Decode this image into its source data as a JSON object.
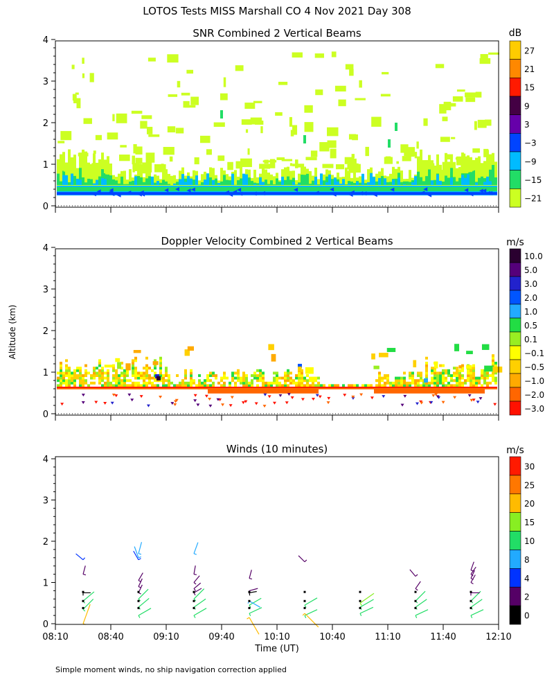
{
  "page_title": "LOTOS Tests MISS Marshall CO    4 Nov 2021 Day 308",
  "footnote": "Simple moment winds, no ship navigation correction applied",
  "shared_axes": {
    "ylabel": "Altitude (km)",
    "xlabel": "Time (UT)",
    "x_tick_labels": [
      "08:10",
      "08:40",
      "09:10",
      "09:40",
      "10:10",
      "10:40",
      "11:10",
      "11:40",
      "12:10"
    ],
    "x_range_minutes": [
      490,
      730
    ],
    "y_tick_labels": [
      "0",
      "1",
      "2",
      "3",
      "4"
    ],
    "ylim_km": [
      0,
      4
    ]
  },
  "chart_data": [
    {
      "type": "heatmap",
      "title": "SNR Combined 2 Vertical Beams",
      "colorbar_unit": "dB",
      "colorbar_levels": [
        "27",
        "21",
        "15",
        "9",
        "3",
        "−3",
        "−9",
        "−15",
        "−21"
      ],
      "colorbar_colors": [
        "#ffcc00",
        "#ff8800",
        "#ff1a00",
        "#440044",
        "#6600aa",
        "#0044ff",
        "#00bbff",
        "#22dd66",
        "#ccff22"
      ],
      "xlim_minutes": [
        490,
        730
      ],
      "ylim_km": [
        0,
        4
      ],
      "features": [
        {
          "layer": "strong return band",
          "altitude_km": [
            0.25,
            0.45
          ],
          "class": "−9 to 3 dB"
        },
        {
          "layer": "boundary layer echoes",
          "altitude_km": [
            0.45,
            1.2
          ],
          "class": "−21 to −9 dB"
        },
        {
          "layer": "scattered weak echoes",
          "altitude_km": [
            1.2,
            4.0
          ],
          "class": "−21 dB"
        }
      ]
    },
    {
      "type": "heatmap",
      "title": "Doppler Velocity Combined 2 Vertical Beams",
      "colorbar_unit": "m/s",
      "colorbar_levels": [
        "10.0",
        "5.0",
        "3.0",
        "2.0",
        "1.0",
        "0.5",
        "0.1",
        "−0.1",
        "−0.5",
        "−1.0",
        "−2.0",
        "−3.0"
      ],
      "colorbar_colors": [
        "#2a0030",
        "#55007a",
        "#2222cc",
        "#0055ff",
        "#22aaff",
        "#22dd44",
        "#99ee22",
        "#ffff00",
        "#ffd000",
        "#ffaa00",
        "#ff6600",
        "#ff1100"
      ],
      "xlim_minutes": [
        490,
        730
      ],
      "ylim_km": [
        0,
        4
      ],
      "features": [
        {
          "layer": "downward velocities line",
          "altitude_km": [
            0.55,
            0.65
          ],
          "class": "−3.0 to −2.0 m/s"
        },
        {
          "layer": "mixed layer",
          "altitude_km": [
            0.65,
            1.3
          ],
          "class": "−0.5 to 0.5 m/s"
        }
      ]
    },
    {
      "type": "line",
      "title": "Winds (10 minutes)",
      "colorbar_unit": "m/s",
      "colorbar_levels": [
        "30",
        "25",
        "20",
        "15",
        "10",
        "8",
        "4",
        "2",
        "0"
      ],
      "colorbar_colors": [
        "#ff1a00",
        "#ff7700",
        "#ffbb00",
        "#88ee22",
        "#22dd66",
        "#22aaff",
        "#0033ff",
        "#550066",
        "#000000"
      ],
      "xlim_minutes": [
        490,
        730
      ],
      "ylim_km": [
        0,
        4
      ],
      "profiles": [
        {
          "time": 505,
          "barbs": [
            {
              "alt": 0.0,
              "dir": 200,
              "spd": 22
            },
            {
              "alt": 0.35,
              "dir": 225,
              "spd": 12
            },
            {
              "alt": 0.55,
              "dir": 230,
              "spd": 12
            },
            {
              "alt": 0.75,
              "dir": 270,
              "spd": 1
            },
            {
              "alt": 1.2,
              "dir": 195,
              "spd": 3
            },
            {
              "alt": 1.55,
              "dir": 130,
              "spd": 4
            }
          ]
        },
        {
          "time": 535,
          "barbs": [
            {
              "alt": 0.2,
              "dir": 240,
              "spd": 12
            },
            {
              "alt": 0.4,
              "dir": 230,
              "spd": 11
            },
            {
              "alt": 0.6,
              "dir": 225,
              "spd": 11
            },
            {
              "alt": 0.75,
              "dir": 205,
              "spd": 3
            },
            {
              "alt": 0.9,
              "dir": 205,
              "spd": 3
            },
            {
              "alt": 1.05,
              "dir": 210,
              "spd": 3
            },
            {
              "alt": 1.55,
              "dir": 150,
              "spd": 5
            },
            {
              "alt": 1.6,
              "dir": 160,
              "spd": 8
            },
            {
              "alt": 1.7,
              "dir": 195,
              "spd": 8
            }
          ]
        },
        {
          "time": 565,
          "barbs": [
            {
              "alt": 0.2,
              "dir": 240,
              "spd": 12
            },
            {
              "alt": 0.4,
              "dir": 235,
              "spd": 12
            },
            {
              "alt": 0.6,
              "dir": 225,
              "spd": 12
            },
            {
              "alt": 0.75,
              "dir": 240,
              "spd": 3
            },
            {
              "alt": 0.85,
              "dir": 230,
              "spd": 3
            },
            {
              "alt": 1.0,
              "dir": 220,
              "spd": 3
            },
            {
              "alt": 1.2,
              "dir": 190,
              "spd": 3
            },
            {
              "alt": 1.7,
              "dir": 200,
              "spd": 8
            }
          ]
        },
        {
          "time": 595,
          "barbs": [
            {
              "alt": 0.25,
              "dir": 245,
              "spd": 11
            },
            {
              "alt": 0.45,
              "dir": 240,
              "spd": 11
            },
            {
              "alt": 0.75,
              "dir": 260,
              "spd": 1
            },
            {
              "alt": 0.8,
              "dir": 255,
              "spd": 3
            },
            {
              "alt": 1.1,
              "dir": 195,
              "spd": 3
            },
            {
              "alt": 0.15,
              "dir": 330,
              "spd": 20
            },
            {
              "alt": 0.55,
              "dir": 300,
              "spd": 9
            }
          ]
        },
        {
          "time": 625,
          "barbs": [
            {
              "alt": 0.2,
              "dir": 245,
              "spd": 11
            },
            {
              "alt": 0.45,
              "dir": 240,
              "spd": 12
            },
            {
              "alt": 0.25,
              "dir": 315,
              "spd": 20
            },
            {
              "alt": 1.5,
              "dir": 135,
              "spd": 3
            }
          ]
        },
        {
          "time": 655,
          "barbs": [
            {
              "alt": 0.25,
              "dir": 245,
              "spd": 12
            },
            {
              "alt": 0.4,
              "dir": 240,
              "spd": 14
            },
            {
              "alt": 0.5,
              "dir": 235,
              "spd": 16
            }
          ]
        },
        {
          "time": 685,
          "barbs": [
            {
              "alt": 0.2,
              "dir": 245,
              "spd": 11
            },
            {
              "alt": 0.4,
              "dir": 235,
              "spd": 11
            },
            {
              "alt": 0.55,
              "dir": 225,
              "spd": 11
            },
            {
              "alt": 0.85,
              "dir": 215,
              "spd": 3
            },
            {
              "alt": 1.15,
              "dir": 140,
              "spd": 3
            }
          ]
        },
        {
          "time": 715,
          "barbs": [
            {
              "alt": 0.2,
              "dir": 245,
              "spd": 11
            },
            {
              "alt": 0.4,
              "dir": 235,
              "spd": 11
            },
            {
              "alt": 0.55,
              "dir": 225,
              "spd": 11
            },
            {
              "alt": 0.75,
              "dir": 270,
              "spd": 3
            },
            {
              "alt": 1.0,
              "dir": 210,
              "spd": 3
            },
            {
              "alt": 1.1,
              "dir": 205,
              "spd": 3
            },
            {
              "alt": 1.2,
              "dir": 215,
              "spd": 3
            },
            {
              "alt": 1.3,
              "dir": 200,
              "spd": 3
            }
          ]
        }
      ]
    }
  ]
}
